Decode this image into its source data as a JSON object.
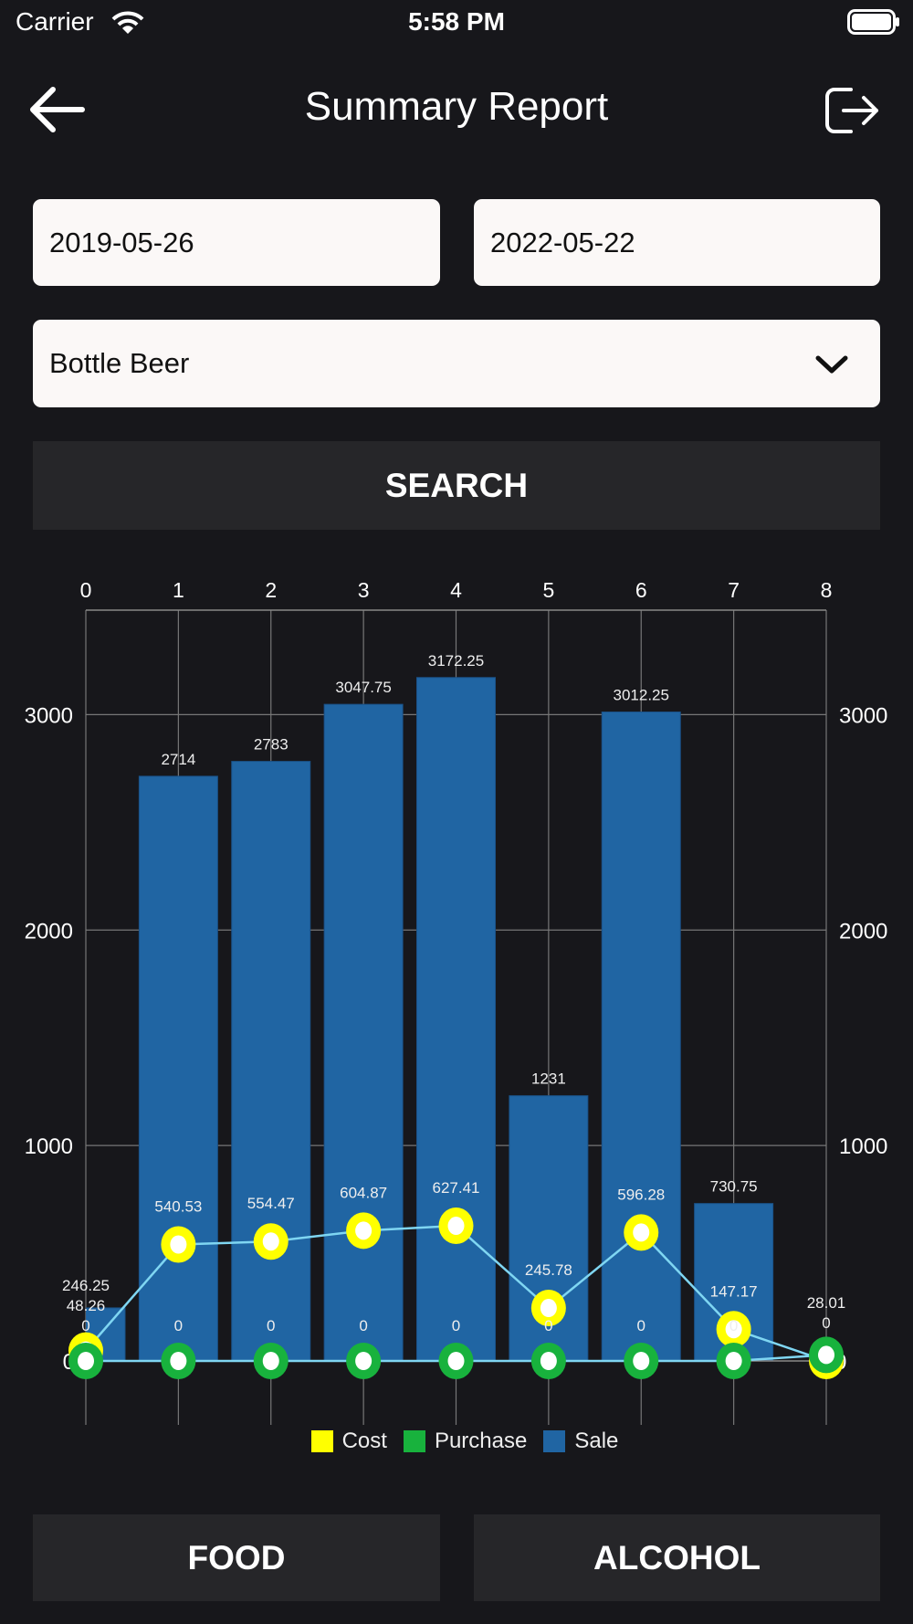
{
  "status_bar": {
    "carrier": "Carrier",
    "time": "5:58 PM"
  },
  "header": {
    "title": "Summary Report",
    "back_icon": "arrow-left-icon",
    "logout_icon": "logout-icon"
  },
  "filters": {
    "start_date": "2019-05-26",
    "end_date": "2022-05-22",
    "category": "Bottle Beer",
    "search_label": "SEARCH"
  },
  "chart_data": {
    "type": "bar",
    "x": [
      0,
      1,
      2,
      3,
      4,
      5,
      6,
      7,
      8
    ],
    "x_tick_labels": [
      "0",
      "1",
      "2",
      "3",
      "4",
      "5",
      "6",
      "7",
      "8"
    ],
    "y_tick_labels": [
      "0",
      "1000",
      "2000",
      "3000"
    ],
    "ylim": [
      0,
      3485
    ],
    "grid": true,
    "legend_position": "bottom",
    "series": [
      {
        "name": "Cost",
        "type": "line",
        "color": "#ffff00",
        "values": [
          48.26,
          540.53,
          554.47,
          604.87,
          627.41,
          245.78,
          596.28,
          147.17,
          0
        ],
        "labels": [
          "48.26",
          "540.53",
          "554.47",
          "604.87",
          "627.41",
          "245.78",
          "596.28",
          "147.17",
          "0"
        ]
      },
      {
        "name": "Purchase",
        "type": "line",
        "color": "#18b23d",
        "values": [
          0,
          0,
          0,
          0,
          0,
          0,
          0,
          0,
          28.01
        ],
        "labels": [
          "0",
          "0",
          "0",
          "0",
          "0",
          "0",
          "0",
          "0",
          "28.01"
        ]
      },
      {
        "name": "Sale",
        "type": "bar",
        "color": "#2065a3",
        "values": [
          246.25,
          2714,
          2783,
          3047.75,
          3172.25,
          1231,
          3012.25,
          730.75,
          0
        ],
        "labels": [
          "246.25",
          "2714",
          "2783",
          "3047.75",
          "3172.25",
          "1231",
          "3012.25",
          "730.75",
          "0"
        ]
      }
    ],
    "line_color": "#7fd6f2"
  },
  "bottom_buttons": {
    "food": "FOOD",
    "alcohol": "ALCOHOL"
  }
}
